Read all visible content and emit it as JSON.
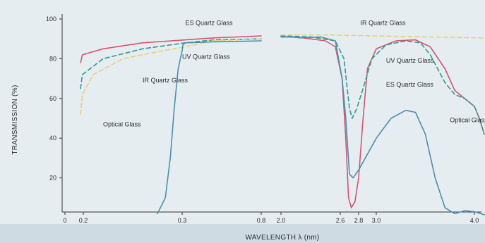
{
  "chart_data": {
    "type": "line",
    "xlabel": "WAVELENGTH λ (nm)",
    "ylabel": "TRANSMISSION (%)",
    "ylim": [
      0,
      100
    ],
    "y_ticks": [
      20,
      40,
      60,
      80,
      100
    ],
    "grid": false,
    "legend": "none (inline annotations)",
    "x_ticks": [
      {
        "label": "0",
        "value": 0
      },
      {
        "label": "0.2",
        "value": 0.2
      },
      {
        "label": "0.3",
        "value": 0.3
      },
      {
        "label": "0.8",
        "value": 0.8
      },
      {
        "label": "2.0",
        "value": 2.0
      },
      {
        "label": "2.6",
        "value": 2.6
      },
      {
        "label": "2.8",
        "value": 2.8
      },
      {
        "label": "3.0",
        "value": 3.0
      },
      {
        "label": "4.0",
        "value": 4.0
      }
    ],
    "series": [
      {
        "name": "ES Quartz Glass",
        "color": "#d9536d",
        "style": "solid",
        "segments": [
          [
            [
              0.17,
              78
            ],
            [
              0.19,
              82
            ],
            [
              0.22,
              85
            ],
            [
              0.26,
              88
            ],
            [
              0.32,
              89.5
            ],
            [
              0.5,
              90.5
            ],
            [
              0.8,
              91.5
            ]
          ],
          [
            [
              2.0,
              91
            ],
            [
              2.15,
              91
            ],
            [
              2.3,
              90
            ],
            [
              2.45,
              89
            ],
            [
              2.55,
              86
            ],
            [
              2.62,
              70
            ],
            [
              2.66,
              40
            ],
            [
              2.69,
              10
            ],
            [
              2.72,
              5
            ],
            [
              2.76,
              8
            ],
            [
              2.8,
              20
            ],
            [
              2.85,
              50
            ],
            [
              2.9,
              75
            ],
            [
              3.0,
              85
            ],
            [
              3.2,
              89
            ],
            [
              3.4,
              89.5
            ],
            [
              3.55,
              86
            ],
            [
              3.7,
              75
            ],
            [
              3.8,
              64
            ],
            [
              3.9,
              60
            ],
            [
              4.0,
              56
            ],
            [
              4.05,
              50
            ],
            [
              4.1,
              42
            ]
          ]
        ]
      },
      {
        "name": "UV Quartz Glass",
        "color": "#2a9d8f",
        "style": "dashed",
        "segments": [
          [
            [
              0.17,
              65
            ],
            [
              0.19,
              72
            ],
            [
              0.22,
              80
            ],
            [
              0.26,
              85
            ],
            [
              0.32,
              88
            ],
            [
              0.5,
              89.5
            ],
            [
              0.8,
              90
            ]
          ],
          [
            [
              2.0,
              91.5
            ],
            [
              2.3,
              91
            ],
            [
              2.55,
              89
            ],
            [
              2.64,
              80
            ],
            [
              2.7,
              55
            ],
            [
              2.73,
              50
            ],
            [
              2.78,
              55
            ],
            [
              2.85,
              65
            ],
            [
              2.95,
              80
            ],
            [
              3.1,
              87
            ],
            [
              3.3,
              89
            ],
            [
              3.45,
              88
            ],
            [
              3.55,
              82
            ],
            [
              3.7,
              68
            ],
            [
              3.8,
              62
            ],
            [
              3.9,
              60
            ],
            [
              4.0,
              56
            ],
            [
              4.05,
              50
            ],
            [
              4.1,
              42
            ]
          ]
        ]
      },
      {
        "name": "IR Quartz Glass",
        "color": "#e3d277",
        "style": "dashed",
        "segments": [
          [
            [
              0.17,
              52
            ],
            [
              0.19,
              62
            ],
            [
              0.21,
              72
            ],
            [
              0.24,
              80
            ],
            [
              0.28,
              84
            ],
            [
              0.32,
              86
            ],
            [
              0.5,
              89
            ],
            [
              0.8,
              90
            ]
          ],
          [
            [
              2.0,
              92
            ],
            [
              2.5,
              92
            ],
            [
              3.0,
              91.5
            ],
            [
              3.5,
              91
            ],
            [
              4.1,
              90.5
            ]
          ]
        ]
      },
      {
        "name": "Optical Glass",
        "color": "#4a8fb0",
        "style": "solid",
        "segments": [
          [
            [
              0.275,
              2
            ],
            [
              0.283,
              10
            ],
            [
              0.288,
              30
            ],
            [
              0.292,
              55
            ],
            [
              0.296,
              75
            ],
            [
              0.3,
              84
            ],
            [
              0.305,
              87
            ],
            [
              0.32,
              88
            ],
            [
              0.5,
              88.5
            ],
            [
              0.8,
              89
            ]
          ],
          [
            [
              2.0,
              91
            ],
            [
              2.1,
              91
            ],
            [
              2.2,
              90.5
            ],
            [
              2.4,
              91
            ],
            [
              2.55,
              89
            ],
            [
              2.62,
              70
            ],
            [
              2.66,
              50
            ],
            [
              2.7,
              22
            ],
            [
              2.74,
              20
            ],
            [
              2.8,
              24
            ],
            [
              2.9,
              32
            ],
            [
              3.0,
              40
            ],
            [
              3.15,
              50
            ],
            [
              3.3,
              54
            ],
            [
              3.4,
              53
            ],
            [
              3.5,
              42
            ],
            [
              3.6,
              20
            ],
            [
              3.7,
              5
            ],
            [
              3.8,
              2
            ],
            [
              3.9,
              3.5
            ],
            [
              4.0,
              3
            ],
            [
              4.1,
              1.5
            ]
          ]
        ]
      }
    ],
    "annotations": [
      {
        "text": "ES Quartz Glass",
        "x": 0.32,
        "y": 97,
        "color": "#222222"
      },
      {
        "text": "UV Quartz Glass",
        "x": 0.3,
        "y": 80,
        "color": "#222222"
      },
      {
        "text": "IR Quartz Glass",
        "x": 0.26,
        "y": 68,
        "color": "#222222"
      },
      {
        "text": "Optical Glass",
        "x": 0.22,
        "y": 46,
        "color": "#222222"
      },
      {
        "text": "IR Quartz Glass",
        "x": 2.82,
        "y": 97,
        "color": "#222222"
      },
      {
        "text": "UV Quartz Glass",
        "x": 3.1,
        "y": 78,
        "color": "#222222"
      },
      {
        "text": "ES Quartz Glass",
        "x": 3.1,
        "y": 66,
        "color": "#222222"
      },
      {
        "text": "Optical Glass",
        "x": 3.75,
        "y": 48,
        "color": "#222222"
      }
    ]
  }
}
